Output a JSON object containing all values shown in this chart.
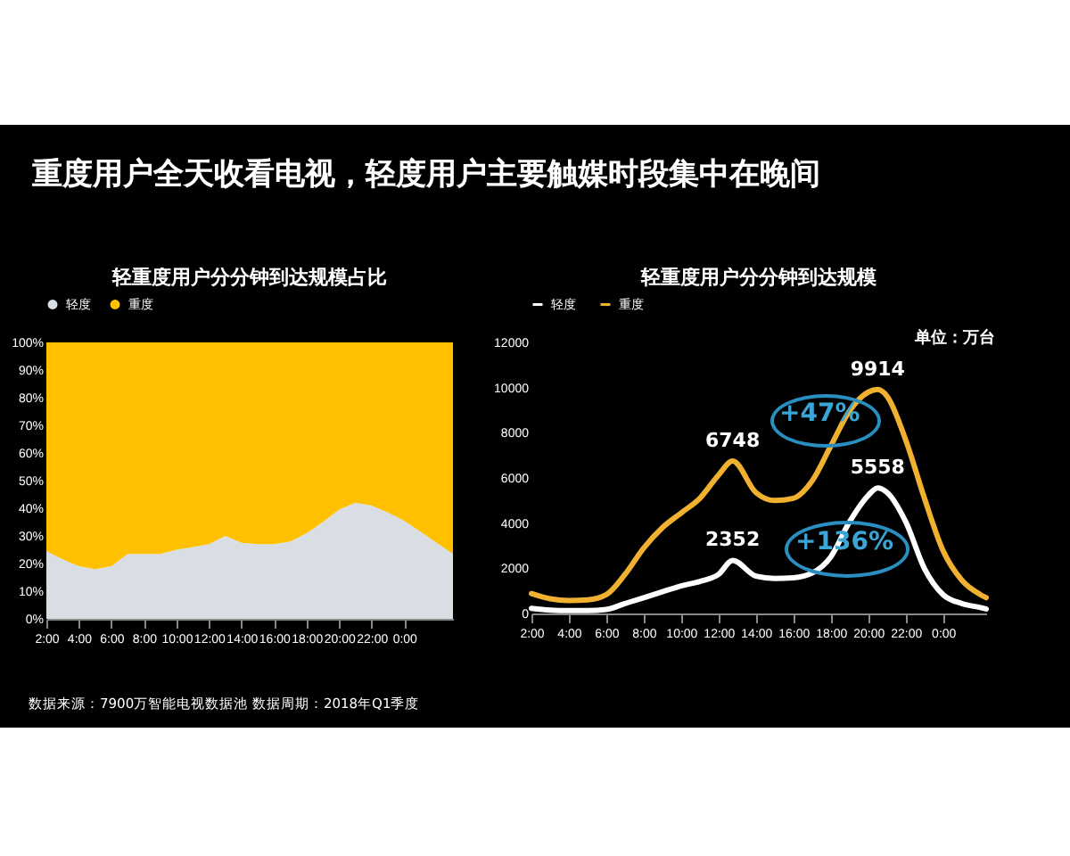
{
  "chart_data": [
    {
      "type": "area",
      "stacked": true,
      "title": "轻重度用户分分钟到达规模占比",
      "legend": "top",
      "annotations": [
        "重度用户全天收看电视，轻度用户主要触媒时段集中在晚间",
        "数据来源：7900万智能电视数据池  数据周期：2018年Q1季度"
      ],
      "x": [
        2,
        3,
        4,
        5,
        6,
        7,
        8,
        9,
        10,
        11,
        12,
        13,
        14,
        15,
        16,
        17,
        18,
        19,
        20,
        21,
        22,
        23,
        24,
        25,
        26,
        27
      ],
      "series": [
        {
          "name": "轻度",
          "color": "#d9dde4",
          "values": [
            24.5,
            21.5,
            19,
            18,
            19,
            23.5,
            23.5,
            23.5,
            25,
            26,
            27,
            30,
            27.5,
            27,
            27,
            28,
            31,
            35,
            39.5,
            42,
            41,
            38.5,
            35.5,
            31.5,
            27.5,
            23.5
          ]
        },
        {
          "name": "重度",
          "color": "#ffc000",
          "values": [
            75.5,
            78.5,
            81,
            82,
            81,
            76.5,
            76.5,
            76.5,
            75,
            74,
            73,
            70,
            72.5,
            73,
            73,
            72,
            69,
            65,
            60.5,
            58,
            59,
            61.5,
            64.5,
            68.5,
            72.5,
            76.5
          ]
        }
      ],
      "xlim": [
        2,
        27
      ],
      "xticks": [
        {
          "value": 2,
          "label": "2:00"
        },
        {
          "value": 4,
          "label": "4:00"
        },
        {
          "value": 6,
          "label": "6:00"
        },
        {
          "value": 8,
          "label": "8:00"
        },
        {
          "value": 10,
          "label": "10:00"
        },
        {
          "value": 12,
          "label": "12:00"
        },
        {
          "value": 14,
          "label": "14:00"
        },
        {
          "value": 16,
          "label": "16:00"
        },
        {
          "value": 18,
          "label": "18:00"
        },
        {
          "value": 20,
          "label": "20:00"
        },
        {
          "value": 22,
          "label": "22:00"
        },
        {
          "value": 24,
          "label": "0:00"
        }
      ],
      "ylim": [
        0,
        100
      ],
      "yticks": [
        {
          "value": 0,
          "label": "0%"
        },
        {
          "value": 10,
          "label": "10%"
        },
        {
          "value": 20,
          "label": "20%"
        },
        {
          "value": 30,
          "label": "30%"
        },
        {
          "value": 40,
          "label": "40%"
        },
        {
          "value": 50,
          "label": "50%"
        },
        {
          "value": 60,
          "label": "60%"
        },
        {
          "value": 70,
          "label": "70%"
        },
        {
          "value": 80,
          "label": "80%"
        },
        {
          "value": 90,
          "label": "90%"
        },
        {
          "value": 100,
          "label": "100%"
        }
      ]
    },
    {
      "type": "line",
      "title": "轻重度用户分分钟到达规模",
      "legend": "top",
      "annotations": [
        "单位：万台",
        "+47%",
        "+136%"
      ],
      "x": [
        2,
        3,
        4,
        5,
        6,
        7,
        8,
        9,
        10,
        11,
        12,
        12.75,
        14,
        15,
        16,
        17,
        18,
        19,
        20,
        20.5,
        21,
        22,
        23,
        24,
        25,
        26,
        26.3
      ],
      "series": [
        {
          "name": "轻度",
          "color": "#ffffff",
          "values": [
            230,
            150,
            130,
            130,
            180,
            440,
            700,
            960,
            1220,
            1420,
            1730,
            2352,
            1650,
            1550,
            1580,
            1790,
            2510,
            4060,
            5230,
            5558,
            5360,
            4060,
            1990,
            830,
            440,
            260,
            200
          ],
          "value_labels": [
            null,
            null,
            null,
            null,
            null,
            null,
            null,
            null,
            null,
            null,
            null,
            "2352",
            null,
            null,
            null,
            null,
            null,
            null,
            null,
            "5558",
            null,
            null,
            null,
            null,
            null,
            null,
            null
          ]
        },
        {
          "name": "重度",
          "color": "#f0b030",
          "values": [
            880,
            650,
            570,
            600,
            830,
            1730,
            2900,
            3800,
            4450,
            5100,
            6130,
            6748,
            5350,
            5000,
            5100,
            5870,
            7420,
            8970,
            9800,
            9914,
            9620,
            7680,
            5100,
            2770,
            1470,
            830,
            700
          ],
          "value_labels": [
            null,
            null,
            null,
            null,
            null,
            null,
            null,
            null,
            null,
            null,
            null,
            "6748",
            null,
            null,
            null,
            null,
            null,
            null,
            null,
            "9914",
            null,
            null,
            null,
            null,
            null,
            null,
            null
          ]
        }
      ],
      "xlim": [
        2,
        26.3
      ],
      "xticks": [
        {
          "value": 2,
          "label": "2:00"
        },
        {
          "value": 4,
          "label": "4:00"
        },
        {
          "value": 6,
          "label": "6:00"
        },
        {
          "value": 8,
          "label": "8:00"
        },
        {
          "value": 10,
          "label": "10:00"
        },
        {
          "value": 12,
          "label": "12:00"
        },
        {
          "value": 14,
          "label": "14:00"
        },
        {
          "value": 16,
          "label": "16:00"
        },
        {
          "value": 18,
          "label": "18:00"
        },
        {
          "value": 20,
          "label": "20:00"
        },
        {
          "value": 22,
          "label": "22:00"
        },
        {
          "value": 24,
          "label": "0:00"
        }
      ],
      "ylim": [
        0,
        12000
      ],
      "yticks": [
        0,
        2000,
        4000,
        6000,
        8000,
        10000,
        12000
      ]
    }
  ]
}
